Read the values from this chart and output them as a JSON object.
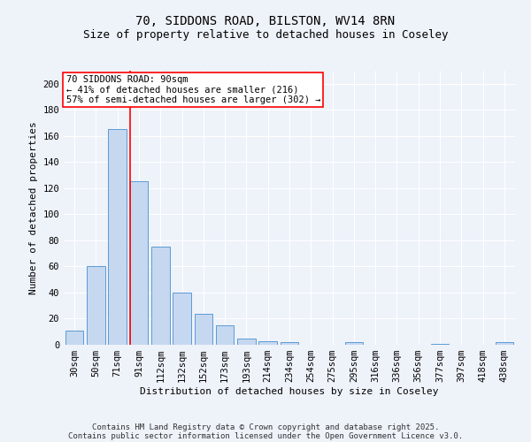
{
  "title1": "70, SIDDONS ROAD, BILSTON, WV14 8RN",
  "title2": "Size of property relative to detached houses in Coseley",
  "xlabel": "Distribution of detached houses by size in Coseley",
  "ylabel": "Number of detached properties",
  "categories": [
    "30sqm",
    "50sqm",
    "71sqm",
    "91sqm",
    "112sqm",
    "132sqm",
    "152sqm",
    "173sqm",
    "193sqm",
    "214sqm",
    "234sqm",
    "254sqm",
    "275sqm",
    "295sqm",
    "316sqm",
    "336sqm",
    "356sqm",
    "377sqm",
    "397sqm",
    "418sqm",
    "438sqm"
  ],
  "values": [
    11,
    60,
    165,
    125,
    75,
    40,
    24,
    15,
    5,
    3,
    2,
    0,
    0,
    2,
    0,
    0,
    0,
    1,
    0,
    0,
    2
  ],
  "bar_color": "#c5d8f0",
  "bar_edge_color": "#5b9bd5",
  "red_line_index": 3,
  "annotation_line1": "70 SIDDONS ROAD: 90sqm",
  "annotation_line2": "← 41% of detached houses are smaller (216)",
  "annotation_line3": "57% of semi-detached houses are larger (302) →",
  "footer_line1": "Contains HM Land Registry data © Crown copyright and database right 2025.",
  "footer_line2": "Contains public sector information licensed under the Open Government Licence v3.0.",
  "ylim": [
    0,
    210
  ],
  "yticks": [
    0,
    20,
    40,
    60,
    80,
    100,
    120,
    140,
    160,
    180,
    200
  ],
  "background_color": "#eef2f9",
  "grid_color": "#ffffff",
  "bar_color_highlight": "#c5d8f0",
  "title_fontsize": 10,
  "subtitle_fontsize": 9,
  "axis_label_fontsize": 8,
  "tick_fontsize": 7.5,
  "annotation_fontsize": 7.5,
  "footer_fontsize": 6.5
}
